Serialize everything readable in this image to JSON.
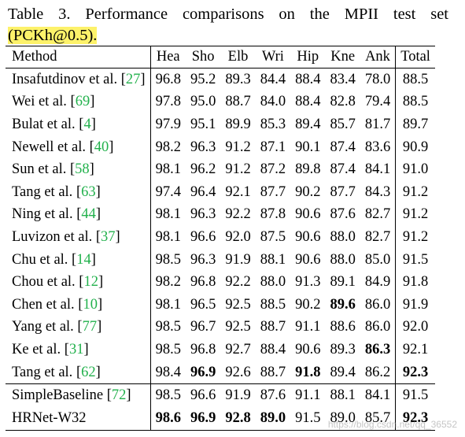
{
  "caption": {
    "line1": "Table 3. Performance comparisons on the MPII test set",
    "line2": "(PCKh@0.5)."
  },
  "header": [
    "Method",
    "Hea",
    "Sho",
    "Elb",
    "Wri",
    "Hip",
    "Kne",
    "Ank",
    "Total"
  ],
  "rows": [
    {
      "name": "Insafutdinov et al. ",
      "ref": "27",
      "vals": [
        "96.8",
        "95.2",
        "89.3",
        "84.4",
        "88.4",
        "83.4",
        "78.0",
        "88.5"
      ],
      "bold": []
    },
    {
      "name": "Wei et al. ",
      "ref": "69",
      "vals": [
        "97.8",
        "95.0",
        "88.7",
        "84.0",
        "88.4",
        "82.8",
        "79.4",
        "88.5"
      ],
      "bold": []
    },
    {
      "name": "Bulat et al. ",
      "ref": "4",
      "vals": [
        "97.9",
        "95.1",
        "89.9",
        "85.3",
        "89.4",
        "85.7",
        "81.7",
        "89.7"
      ],
      "bold": []
    },
    {
      "name": "Newell et al. ",
      "ref": "40",
      "vals": [
        "98.2",
        "96.3",
        "91.2",
        "87.1",
        "90.1",
        "87.4",
        "83.6",
        "90.9"
      ],
      "bold": []
    },
    {
      "name": "Sun et al. ",
      "ref": "58",
      "vals": [
        "98.1",
        "96.2",
        "91.2",
        "87.2",
        "89.8",
        "87.4",
        "84.1",
        "91.0"
      ],
      "bold": []
    },
    {
      "name": "Tang et al. ",
      "ref": "63",
      "vals": [
        "97.4",
        "96.4",
        "92.1",
        "87.7",
        "90.2",
        "87.7",
        "84.3",
        "91.2"
      ],
      "bold": []
    },
    {
      "name": "Ning et al. ",
      "ref": "44",
      "vals": [
        "98.1",
        "96.3",
        "92.2",
        "87.8",
        "90.6",
        "87.6",
        "82.7",
        "91.2"
      ],
      "bold": []
    },
    {
      "name": "Luvizon et al. ",
      "ref": "37",
      "vals": [
        "98.1",
        "96.6",
        "92.0",
        "87.5",
        "90.6",
        "88.0",
        "82.7",
        "91.2"
      ],
      "bold": []
    },
    {
      "name": "Chu et al. ",
      "ref": "14",
      "vals": [
        "98.5",
        "96.3",
        "91.9",
        "88.1",
        "90.6",
        "88.0",
        "85.0",
        "91.5"
      ],
      "bold": []
    },
    {
      "name": "Chou et al. ",
      "ref": "12",
      "vals": [
        "98.2",
        "96.8",
        "92.2",
        "88.0",
        "91.3",
        "89.1",
        "84.9",
        "91.8"
      ],
      "bold": []
    },
    {
      "name": "Chen et al. ",
      "ref": "10",
      "vals": [
        "98.1",
        "96.5",
        "92.5",
        "88.5",
        "90.2",
        "89.6",
        "86.0",
        "91.9"
      ],
      "bold": [
        5
      ]
    },
    {
      "name": "Yang et al. ",
      "ref": "77",
      "vals": [
        "98.5",
        "96.7",
        "92.5",
        "88.7",
        "91.1",
        "88.6",
        "86.0",
        "92.0"
      ],
      "bold": []
    },
    {
      "name": "Ke et al. ",
      "ref": "31",
      "vals": [
        "98.5",
        "96.8",
        "92.7",
        "88.4",
        "90.6",
        "89.3",
        "86.3",
        "92.1"
      ],
      "bold": [
        6
      ]
    },
    {
      "name": "Tang et al. ",
      "ref": "62",
      "vals": [
        "98.4",
        "96.9",
        "92.6",
        "88.7",
        "91.8",
        "89.4",
        "86.2",
        "92.3"
      ],
      "bold": [
        1,
        4,
        7
      ]
    },
    {
      "name": "SimpleBaseline ",
      "ref": "72",
      "vals": [
        "98.5",
        "96.6",
        "91.9",
        "87.6",
        "91.1",
        "88.1",
        "84.1",
        "91.5"
      ],
      "bold": []
    },
    {
      "name": "HRNet-W32",
      "ref": "",
      "vals": [
        "98.6",
        "96.9",
        "92.8",
        "89.0",
        "91.5",
        "89.0",
        "85.7",
        "92.3"
      ],
      "bold": [
        0,
        1,
        2,
        3,
        7
      ]
    }
  ],
  "watermark": "https://blog.csdn.net/qq_36552"
}
